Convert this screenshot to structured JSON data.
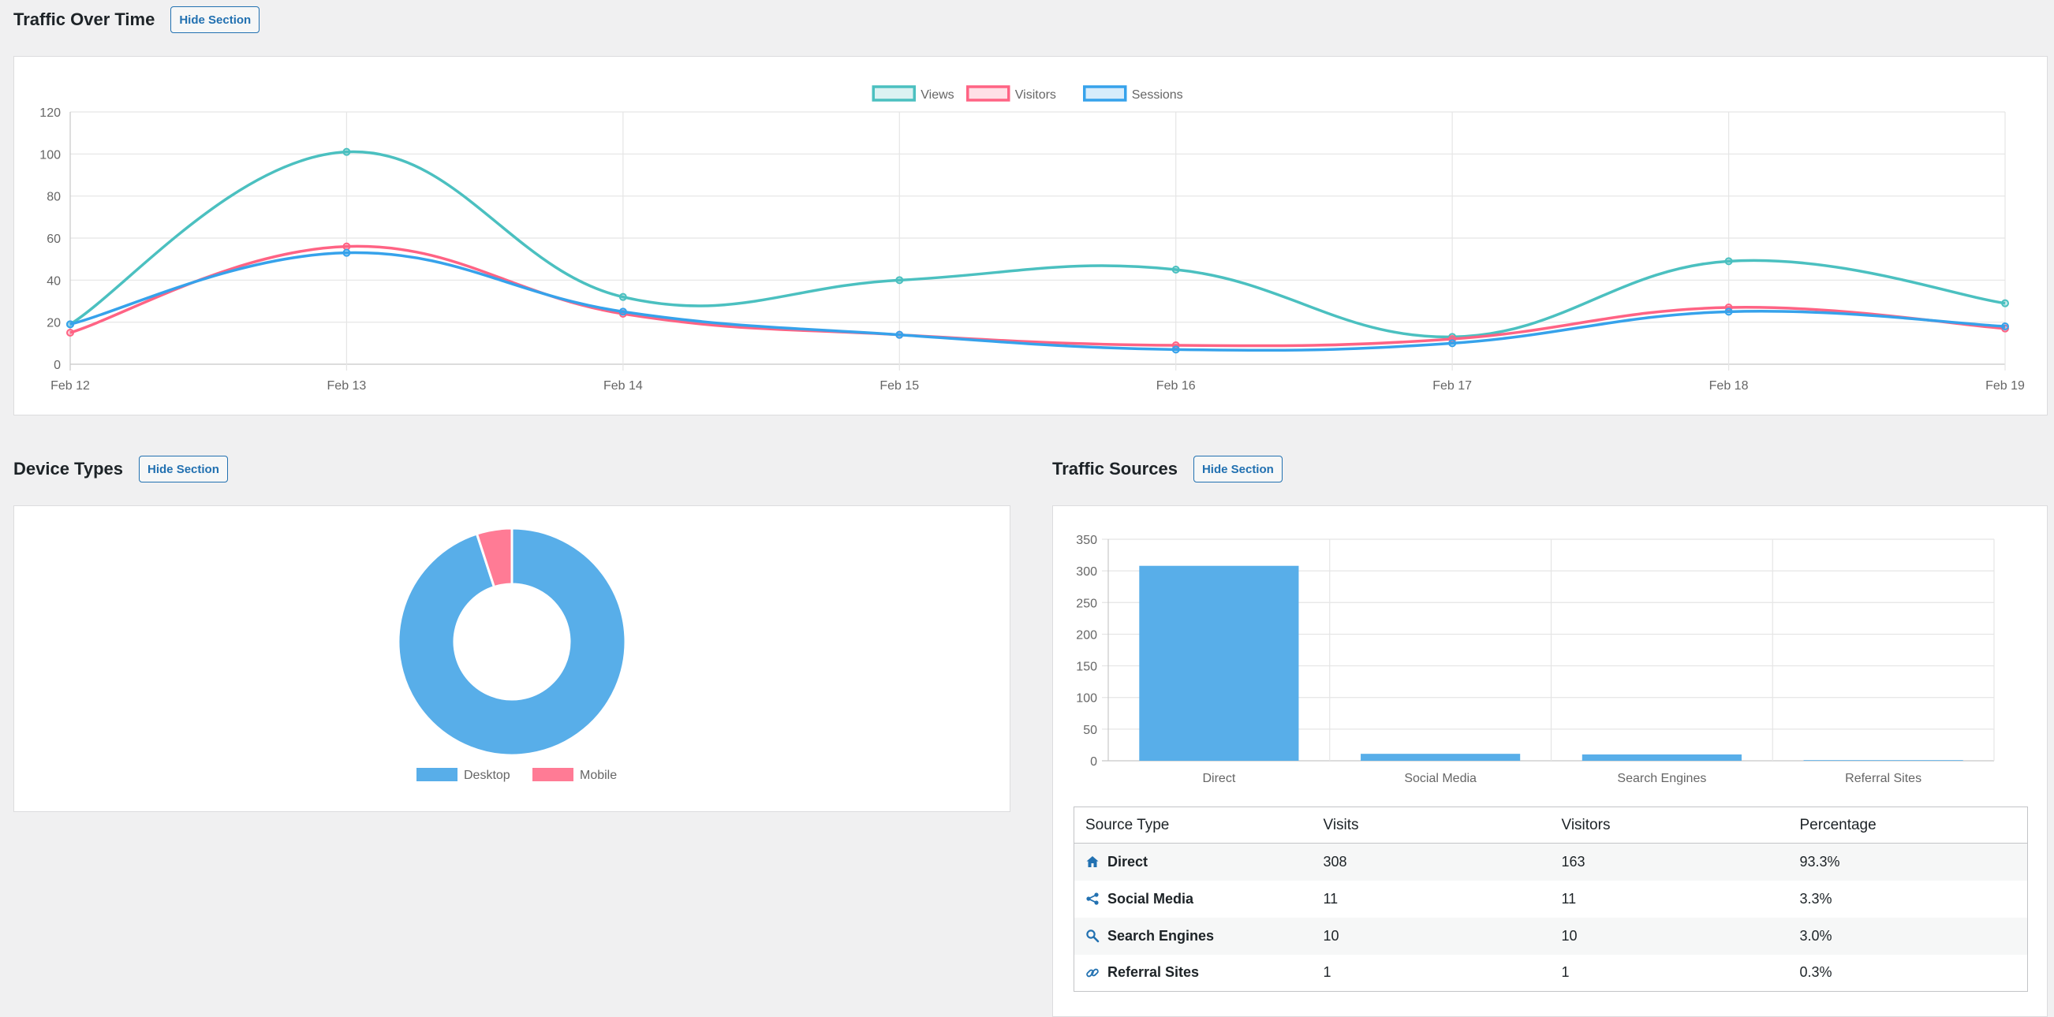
{
  "traffic_over_time": {
    "title": "Traffic Over Time",
    "hide_label": "Hide Section"
  },
  "device_types": {
    "title": "Device Types",
    "hide_label": "Hide Section"
  },
  "traffic_sources": {
    "title": "Traffic Sources",
    "hide_label": "Hide Section",
    "table": {
      "headers": [
        "Source Type",
        "Visits",
        "Visitors",
        "Percentage"
      ],
      "rows": [
        {
          "icon": "home-icon",
          "name": "Direct",
          "visits": "308",
          "visitors": "163",
          "percentage": "93.3%"
        },
        {
          "icon": "share-icon",
          "name": "Social Media",
          "visits": "11",
          "visitors": "11",
          "percentage": "3.3%"
        },
        {
          "icon": "search-icon",
          "name": "Search Engines",
          "visits": "10",
          "visitors": "10",
          "percentage": "3.0%"
        },
        {
          "icon": "link-icon",
          "name": "Referral Sites",
          "visits": "1",
          "visitors": "1",
          "percentage": "0.3%"
        }
      ]
    }
  },
  "colors": {
    "views": "#4bc0c0",
    "visitors": "#ff6384",
    "sessions": "#36a2eb",
    "accent": "#2271b1"
  },
  "chart_data": [
    {
      "type": "line",
      "x": [
        "Feb 12",
        "Feb 13",
        "Feb 14",
        "Feb 15",
        "Feb 16",
        "Feb 17",
        "Feb 18",
        "Feb 19"
      ],
      "series": [
        {
          "name": "Views",
          "values": [
            19,
            101,
            32,
            40,
            45,
            13,
            49,
            29
          ]
        },
        {
          "name": "Visitors",
          "values": [
            15,
            56,
            24,
            14,
            9,
            12,
            27,
            17
          ]
        },
        {
          "name": "Sessions",
          "values": [
            19,
            53,
            25,
            14,
            7,
            10,
            25,
            18
          ]
        }
      ],
      "ylim": [
        0,
        120
      ],
      "yticks": [
        0,
        20,
        40,
        60,
        80,
        100,
        120
      ],
      "grid": true,
      "legend": "top"
    },
    {
      "type": "pie",
      "labels": [
        "Desktop",
        "Mobile"
      ],
      "values": [
        95,
        5
      ],
      "legend": "bottom"
    },
    {
      "type": "bar",
      "categories": [
        "Direct",
        "Social Media",
        "Search Engines",
        "Referral Sites"
      ],
      "values": [
        308,
        11,
        10,
        1
      ],
      "ylim": [
        0,
        350
      ],
      "yticks": [
        0,
        50,
        100,
        150,
        200,
        250,
        300,
        350
      ],
      "grid": true
    }
  ]
}
